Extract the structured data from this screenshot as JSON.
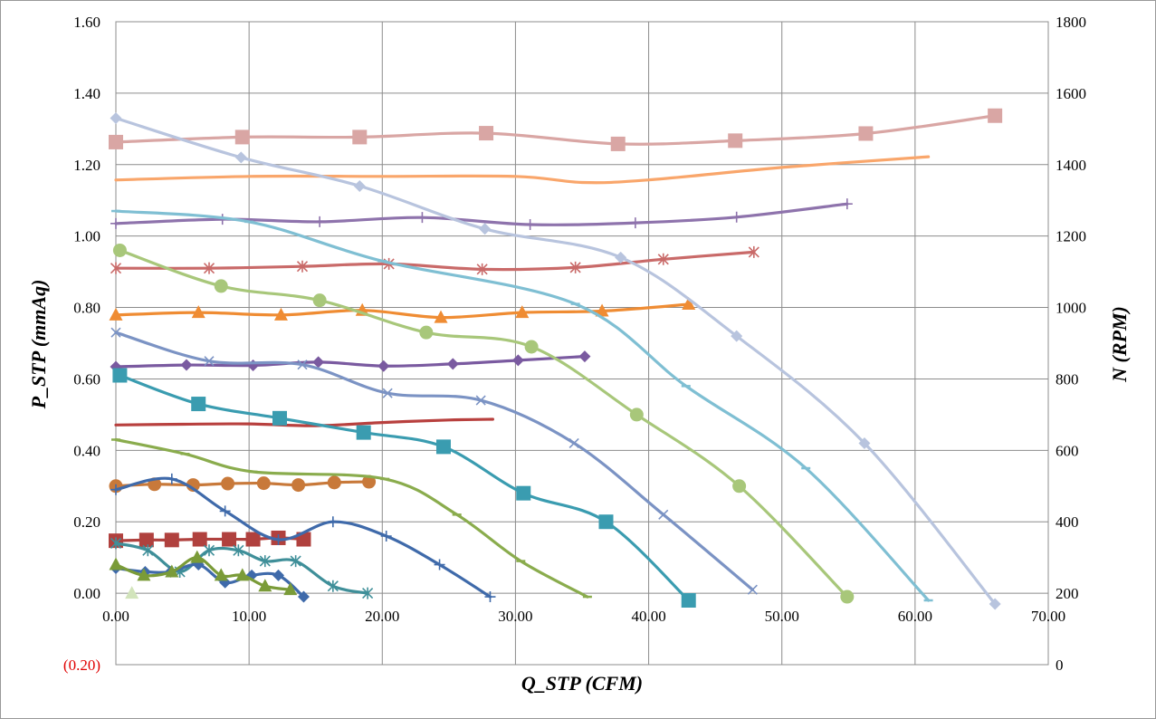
{
  "chart_data": {
    "type": "line",
    "title": "",
    "xlabel": "Q_STP (CFM)",
    "ylabel": "P_STP (mmAq)",
    "y2label": "N (RPM)",
    "xlim": [
      0,
      70
    ],
    "ylim": [
      -0.2,
      1.6
    ],
    "y2lim": [
      0,
      1800
    ],
    "x_ticks": [
      "0.00",
      "10.00",
      "20.00",
      "30.00",
      "40.00",
      "50.00",
      "60.00",
      "70.00"
    ],
    "y_ticks": [
      "(0.20)",
      "0.00",
      "0.20",
      "0.40",
      "0.60",
      "0.80",
      "1.00",
      "1.20",
      "1.40",
      "1.60"
    ],
    "y2_ticks": [
      "0",
      "200",
      "400",
      "600",
      "800",
      "1000",
      "1200",
      "1400",
      "1600",
      "1800"
    ],
    "grid": true,
    "legend": "none",
    "series": [
      {
        "axis": "y2",
        "marker": "square",
        "color": "#d9a6a4",
        "x": [
          0,
          9.5,
          18.3,
          27.8,
          37.7,
          46.5,
          56.3,
          66.0
        ],
        "values": [
          1463,
          1477,
          1477,
          1488,
          1458,
          1467,
          1487,
          1537
        ]
      },
      {
        "axis": "y2",
        "marker": "none",
        "color": "#f9a66b",
        "x": [
          0,
          10,
          20,
          30,
          35,
          40,
          50,
          61.0
        ],
        "values": [
          1357,
          1367,
          1367,
          1367,
          1350,
          1357,
          1392,
          1422
        ]
      },
      {
        "axis": "y2",
        "marker": "plus",
        "color": "#8e73ac",
        "x": [
          0,
          8,
          15.3,
          23.0,
          31.1,
          39.0,
          46.6,
          54.9
        ],
        "values": [
          1235,
          1247,
          1240,
          1252,
          1232,
          1237,
          1253,
          1290
        ]
      },
      {
        "axis": "y2",
        "marker": "star",
        "color": "#c96a69",
        "x": [
          0,
          7.0,
          14.0,
          20.5,
          27.5,
          34.5,
          41.1,
          47.9
        ],
        "values": [
          1110,
          1110,
          1115,
          1122,
          1107,
          1112,
          1135,
          1155
        ]
      },
      {
        "axis": "y2",
        "marker": "triangle",
        "color": "#ef8c33",
        "x": [
          0,
          6.2,
          12.4,
          18.5,
          24.4,
          30.5,
          36.5,
          43.0
        ],
        "values": [
          979,
          986,
          979,
          992,
          972,
          986,
          990,
          1009
        ]
      },
      {
        "axis": "y2",
        "marker": "diamond",
        "color": "#7a5aa0",
        "x": [
          0,
          5.3,
          10.3,
          15.2,
          20.1,
          25.3,
          30.2,
          35.2
        ],
        "values": [
          834,
          839,
          838,
          847,
          836,
          842,
          852,
          863
        ]
      },
      {
        "axis": "y2",
        "marker": "none",
        "color": "#b8403e",
        "x": [
          0,
          5,
          10,
          15,
          20,
          25,
          28.3
        ],
        "values": [
          671,
          673,
          674,
          669,
          678,
          685,
          687
        ]
      },
      {
        "axis": "y2",
        "marker": "circle",
        "color": "#c8793a",
        "x": [
          0,
          2.9,
          5.8,
          8.4,
          11.1,
          13.7,
          16.4,
          19.0
        ],
        "values": [
          500,
          505,
          503,
          507,
          508,
          503,
          510,
          512
        ]
      },
      {
        "axis": "y2",
        "marker": "square",
        "color": "#b0413e",
        "x": [
          0,
          2.3,
          4.2,
          6.3,
          8.5,
          10.3,
          12.2,
          14.1
        ],
        "values": [
          347,
          349,
          349,
          351,
          351,
          351,
          355,
          351
        ]
      },
      {
        "axis": "y",
        "marker": "diamond",
        "color": "#b8c4de",
        "x": [
          0,
          9.4,
          18.3,
          27.7,
          37.9,
          46.6,
          56.2,
          66.0
        ],
        "values": [
          1.33,
          1.22,
          1.14,
          1.02,
          0.94,
          0.72,
          0.42,
          -0.03
        ]
      },
      {
        "axis": "y",
        "marker": "dash",
        "color": "#7fbfd3",
        "x": [
          0,
          10,
          20,
          34.5,
          42.8,
          51.8,
          61.0
        ],
        "values": [
          1.07,
          1.04,
          0.93,
          0.81,
          0.58,
          0.35,
          -0.02
        ]
      },
      {
        "axis": "y",
        "marker": "circle",
        "color": "#a8c77a",
        "x": [
          0.3,
          7.9,
          15.3,
          23.3,
          31.2,
          39.1,
          46.8,
          54.9
        ],
        "values": [
          0.96,
          0.86,
          0.82,
          0.73,
          0.69,
          0.5,
          0.3,
          -0.01
        ]
      },
      {
        "axis": "y",
        "marker": "x",
        "color": "#7b93c4",
        "x": [
          0,
          7.0,
          14.0,
          20.4,
          27.4,
          34.4,
          41.1,
          47.8
        ],
        "values": [
          0.73,
          0.65,
          0.64,
          0.56,
          0.54,
          0.42,
          0.22,
          0.01
        ]
      },
      {
        "axis": "y",
        "marker": "square",
        "color": "#3a9cb0",
        "x": [
          0.3,
          6.2,
          12.3,
          18.6,
          24.6,
          30.6,
          36.8,
          43.0
        ],
        "values": [
          0.61,
          0.53,
          0.49,
          0.45,
          0.41,
          0.28,
          0.2,
          -0.02
        ]
      },
      {
        "axis": "y",
        "marker": "dash",
        "color": "#8aac4d",
        "x": [
          0,
          5.2,
          10.3,
          20.2,
          25.6,
          30.4,
          35.4
        ],
        "values": [
          0.43,
          0.39,
          0.34,
          0.32,
          0.22,
          0.09,
          -0.01
        ]
      },
      {
        "axis": "y",
        "marker": "plus",
        "color": "#3f6aaa",
        "x": [
          0,
          4.2,
          8.2,
          12.2,
          16.3,
          20.3,
          24.3,
          28.1
        ],
        "values": [
          0.29,
          0.32,
          0.23,
          0.15,
          0.2,
          0.16,
          0.08,
          -0.01
        ]
      },
      {
        "axis": "y",
        "marker": "star",
        "color": "#3f8f99",
        "x": [
          0,
          2.4,
          4.8,
          7.0,
          9.2,
          11.2,
          13.5,
          16.3,
          18.9
        ],
        "values": [
          0.14,
          0.12,
          0.06,
          0.12,
          0.12,
          0.09,
          0.09,
          0.02,
          0.0
        ]
      },
      {
        "axis": "y",
        "marker": "diamond",
        "color": "#3f6aaa",
        "x": [
          0,
          2.2,
          4.1,
          6.2,
          8.2,
          10.2,
          12.2,
          14.1
        ],
        "values": [
          0.07,
          0.06,
          0.06,
          0.08,
          0.03,
          0.05,
          0.05,
          -0.01
        ]
      },
      {
        "axis": "y",
        "marker": "triangle",
        "color": "#7a9b38",
        "x": [
          0,
          2.1,
          4.2,
          6.1,
          7.9,
          9.5,
          11.2,
          13.1
        ],
        "values": [
          0.08,
          0.05,
          0.06,
          0.1,
          0.05,
          0.05,
          0.02,
          0.01
        ]
      },
      {
        "axis": "y",
        "marker": "triangle",
        "color": "#d2e4bb",
        "x": [
          1.2
        ],
        "values": [
          0.0
        ]
      }
    ]
  }
}
